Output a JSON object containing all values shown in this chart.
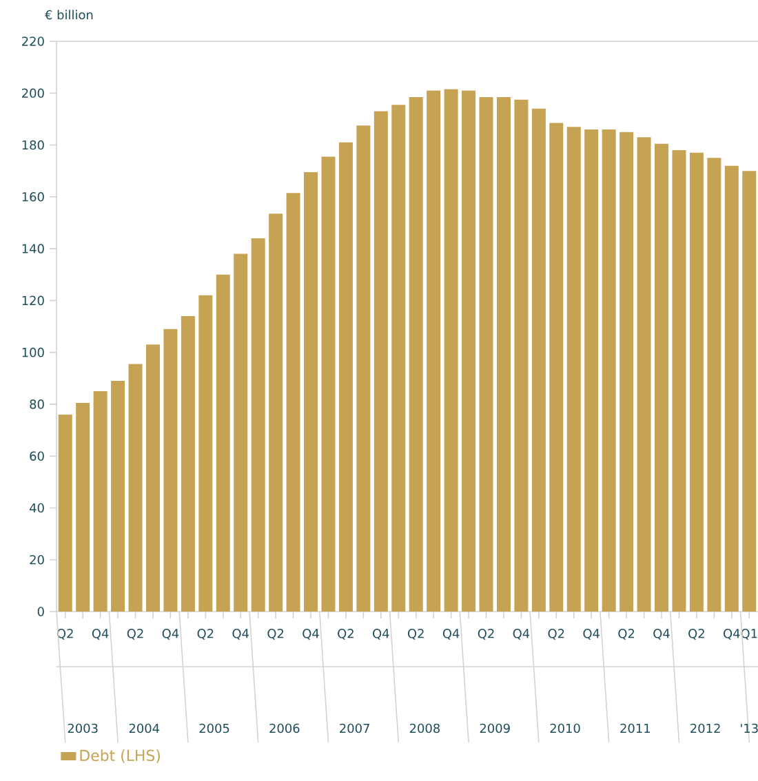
{
  "chart_data": {
    "type": "bar",
    "ylabel": "€ billion",
    "categories": [
      "Q2",
      null,
      "Q4",
      null,
      "Q2",
      null,
      "Q4",
      null,
      "Q2",
      null,
      "Q4",
      null,
      "Q2",
      null,
      "Q4",
      null,
      "Q2",
      null,
      "Q4",
      null,
      "Q2",
      null,
      "Q4",
      null,
      "Q2",
      null,
      "Q4",
      null,
      "Q2",
      null,
      "Q4",
      null,
      "Q2",
      null,
      "Q4",
      null,
      "Q2",
      null,
      "Q4",
      "Q1"
    ],
    "series": [
      {
        "name": "Debt (LHS)",
        "color": "#c6a253",
        "values": [
          76,
          80.5,
          85,
          89,
          95.5,
          103,
          109,
          114,
          122,
          130,
          138,
          144,
          153.5,
          161.5,
          169.5,
          175.5,
          181,
          187.5,
          193,
          195.5,
          198.5,
          201,
          201.5,
          201,
          198.5,
          198.5,
          197.5,
          194,
          188.5,
          187,
          186,
          186,
          185,
          183,
          180.5,
          178,
          177,
          175,
          172,
          170
        ]
      }
    ],
    "ylim": [
      0,
      220
    ],
    "yticks": [
      0,
      20,
      40,
      60,
      80,
      100,
      120,
      140,
      160,
      180,
      200,
      220
    ],
    "annotations": [
      "2003",
      "2004",
      "2005",
      "2006",
      "2007",
      "2008",
      "2009",
      "2010",
      "2011",
      "2012",
      "'13"
    ],
    "grid": false,
    "legend": "bottom"
  }
}
